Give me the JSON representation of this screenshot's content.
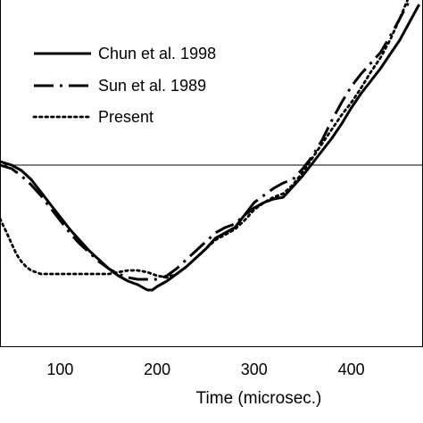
{
  "chart_data": {
    "type": "line",
    "title": "",
    "xlabel": "Time (microsec.)",
    "ylabel": "",
    "xlim": [
      38,
      474
    ],
    "ylim": [
      -1.0,
      1.5
    ],
    "x_ticks": [
      100,
      200,
      300,
      400
    ],
    "grid": false,
    "legend_position": "top-left",
    "series": [
      {
        "name": "Chun et al. 1998",
        "style": "solid",
        "color": "#000000",
        "x": [
          38,
          50,
          60,
          70,
          80,
          90,
          100,
          110,
          120,
          130,
          140,
          150,
          160,
          170,
          180,
          190,
          195,
          200,
          210,
          220,
          230,
          240,
          250,
          260,
          270,
          280,
          290,
          300,
          310,
          320,
          330,
          340,
          350,
          360,
          370,
          380,
          390,
          400,
          410,
          420,
          430,
          440,
          450,
          460,
          470
        ],
        "y": [
          0.02,
          0.0,
          -0.03,
          -0.08,
          -0.15,
          -0.22,
          -0.29,
          -0.36,
          -0.42,
          -0.48,
          -0.53,
          -0.58,
          -0.62,
          -0.65,
          -0.67,
          -0.7,
          -0.7,
          -0.68,
          -0.65,
          -0.61,
          -0.57,
          -0.52,
          -0.47,
          -0.41,
          -0.38,
          -0.35,
          -0.28,
          -0.24,
          -0.21,
          -0.19,
          -0.18,
          -0.12,
          -0.06,
          0.01,
          0.08,
          0.15,
          0.23,
          0.32,
          0.4,
          0.47,
          0.54,
          0.62,
          0.7,
          0.8,
          0.9
        ]
      },
      {
        "name": "Sun et al. 1989",
        "style": "dash-dot",
        "color": "#000000",
        "x": [
          38,
          50,
          60,
          70,
          80,
          90,
          100,
          110,
          120,
          130,
          140,
          150,
          160,
          170,
          180,
          190,
          200,
          210,
          220,
          230,
          240,
          250,
          260,
          270,
          280,
          290,
          300,
          310,
          320,
          330,
          340,
          350,
          360,
          370,
          380,
          390,
          400,
          410,
          420,
          430,
          440,
          450,
          460,
          470
        ],
        "y": [
          0.0,
          -0.02,
          -0.06,
          -0.11,
          -0.17,
          -0.24,
          -0.31,
          -0.38,
          -0.44,
          -0.49,
          -0.54,
          -0.58,
          -0.61,
          -0.63,
          -0.64,
          -0.64,
          -0.64,
          -0.62,
          -0.58,
          -0.53,
          -0.48,
          -0.43,
          -0.38,
          -0.35,
          -0.33,
          -0.28,
          -0.21,
          -0.17,
          -0.13,
          -0.1,
          -0.08,
          -0.02,
          0.05,
          0.14,
          0.25,
          0.35,
          0.44,
          0.51,
          0.57,
          0.63,
          0.72,
          0.82,
          0.92,
          1.02
        ]
      },
      {
        "name": "Present",
        "style": "dotted",
        "color": "#000000",
        "x": [
          38,
          45,
          50,
          55,
          60,
          65,
          70,
          80,
          90,
          100,
          110,
          120,
          130,
          140,
          150,
          160,
          170,
          180,
          190,
          200,
          210,
          220,
          230,
          240,
          250,
          260,
          270,
          280,
          290,
          300,
          310,
          320,
          330,
          340,
          350,
          360,
          370,
          380,
          390,
          400,
          410,
          420,
          430,
          440,
          450,
          460,
          470
        ],
        "y": [
          -0.3,
          -0.38,
          -0.44,
          -0.5,
          -0.54,
          -0.57,
          -0.59,
          -0.61,
          -0.61,
          -0.61,
          -0.61,
          -0.61,
          -0.61,
          -0.61,
          -0.61,
          -0.6,
          -0.59,
          -0.59,
          -0.6,
          -0.62,
          -0.63,
          -0.61,
          -0.57,
          -0.52,
          -0.47,
          -0.42,
          -0.39,
          -0.36,
          -0.31,
          -0.25,
          -0.21,
          -0.18,
          -0.16,
          -0.11,
          -0.04,
          0.04,
          0.12,
          0.2,
          0.28,
          0.35,
          0.43,
          0.52,
          0.6,
          0.7,
          0.82,
          0.95,
          1.03
        ]
      }
    ]
  }
}
